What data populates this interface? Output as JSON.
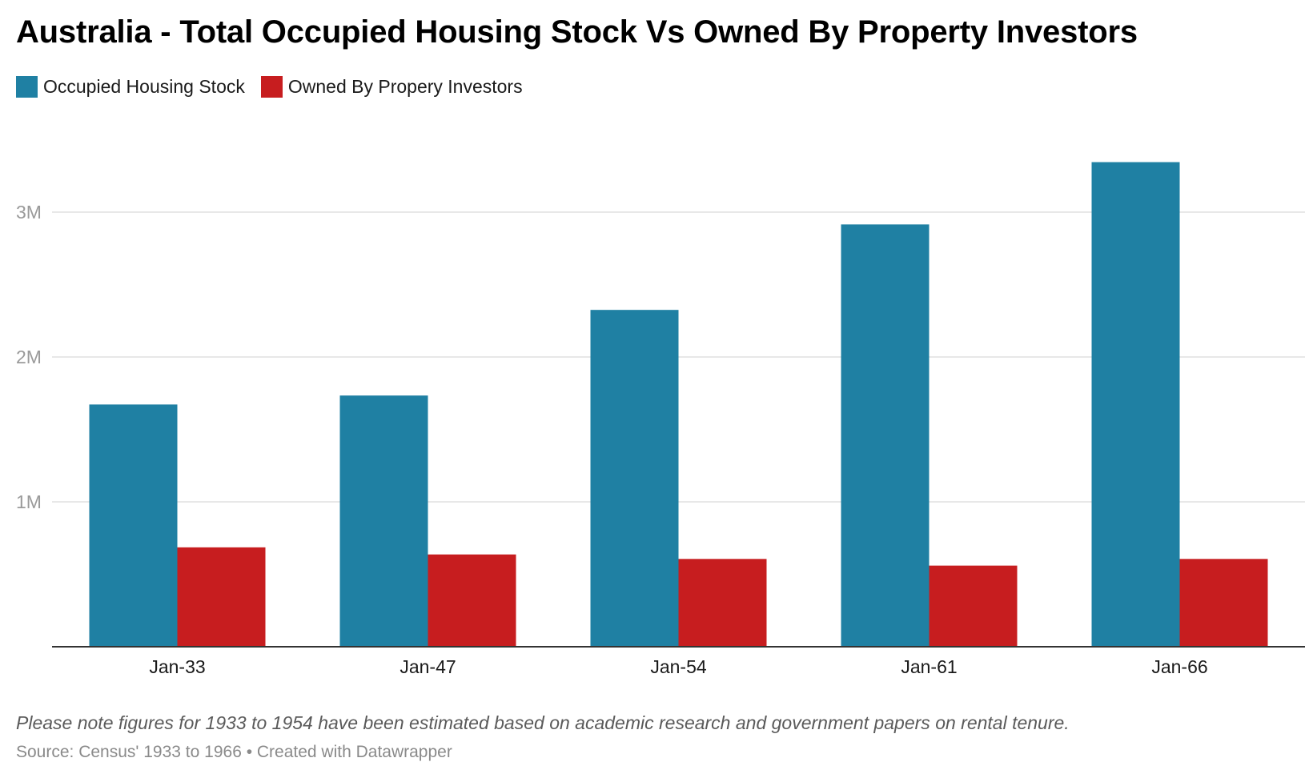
{
  "chart_data": {
    "type": "bar",
    "title": "Australia - Total Occupied Housing Stock Vs Owned By Property Investors",
    "categories": [
      "Jan-33",
      "Jan-47",
      "Jan-54",
      "Jan-61",
      "Jan-66"
    ],
    "series": [
      {
        "name": "Occupied Housing Stock",
        "color": "#1f80a3",
        "values": [
          1672000,
          1734000,
          2325000,
          2915000,
          3345000
        ]
      },
      {
        "name": "Owned By Propery Investors",
        "color": "#c71d1f",
        "values": [
          686000,
          637000,
          606000,
          560000,
          606000
        ]
      }
    ],
    "yticks": [
      {
        "value": 1000000,
        "label": "1M"
      },
      {
        "value": 2000000,
        "label": "2M"
      },
      {
        "value": 3000000,
        "label": "3M"
      }
    ],
    "ylim": [
      0,
      3500000
    ],
    "xlabel": "",
    "ylabel": "",
    "grid": true,
    "legend": "top-left"
  },
  "note": "Please note figures for 1933 to 1954 have been estimated based on academic research and government papers on rental tenure.",
  "source": "Source: Census' 1933 to 1966 • Created with Datawrapper"
}
